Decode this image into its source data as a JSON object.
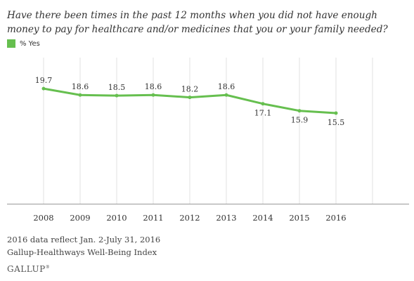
{
  "question": "Have there been times in the past 12 months when you did not have enough money to pay for healthcare and/or medicines that you or your family needed?",
  "legend": {
    "label": "% Yes",
    "color": "#66bf4f"
  },
  "chart_data": {
    "type": "line",
    "title": "Have there been times in the past 12 months when you did not have enough money to pay for healthcare and/or medicines that you or your family needed?",
    "categories": [
      "2008",
      "2009",
      "2010",
      "2011",
      "2012",
      "2013",
      "2014",
      "2015",
      "2016"
    ],
    "series": [
      {
        "name": "% Yes",
        "color": "#66bf4f",
        "values": [
          19.7,
          18.6,
          18.5,
          18.6,
          18.2,
          18.6,
          17.1,
          15.9,
          15.5
        ],
        "labels": [
          "19.7",
          "18.6",
          "18.5",
          "18.6",
          "18.2",
          "18.6",
          "17.1",
          "15.9",
          "15.5"
        ]
      }
    ],
    "xlabel": "",
    "ylabel": "",
    "ylim": [
      0,
      25
    ],
    "grid": "vertical",
    "legend_position": "top-left"
  },
  "footnotes": [
    "2016 data reflect Jan. 2-July 31, 2016",
    "Gallup-Healthways Well-Being Index"
  ],
  "brand": "GALLUP"
}
